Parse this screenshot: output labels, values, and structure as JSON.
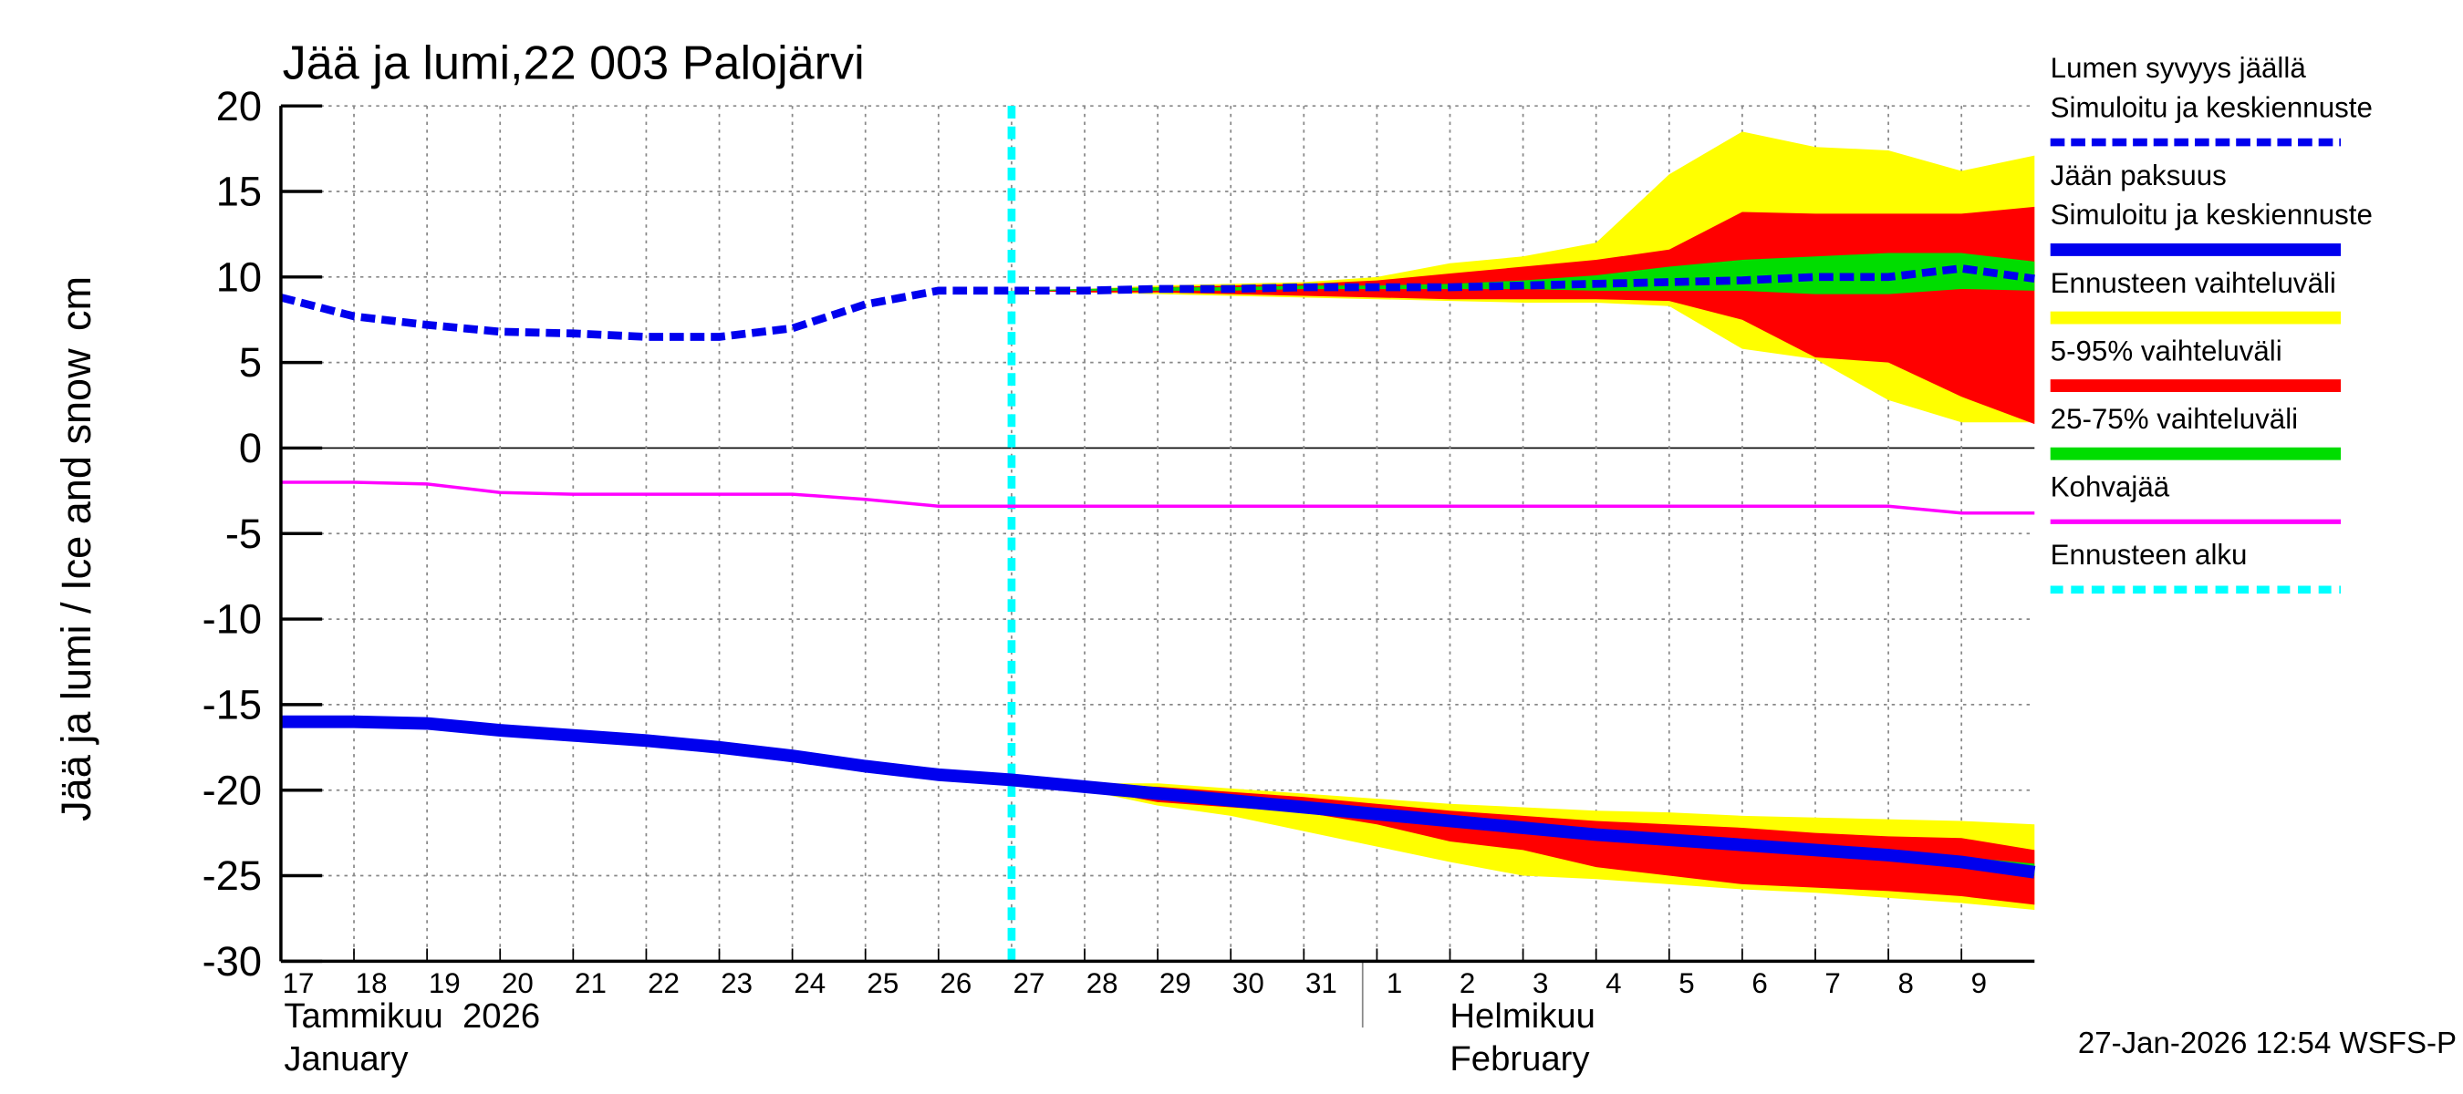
{
  "chart_data": {
    "type": "ice-forecast",
    "title": "Jää ja lumi,22 003 Palojärvi",
    "y_label": "Jää ja lumi / Ice and snow",
    "y_unit": "cm",
    "footer": "27-Jan-2026 12:54 WSFS-P",
    "months": [
      {
        "x": "2026-01-17",
        "labels": [
          "Tammikuu  2026",
          "January"
        ]
      },
      {
        "x": "2026-02-01",
        "labels": [
          "Helmikuu",
          "February"
        ]
      }
    ],
    "xlim": [
      "2026-01-17",
      "2026-02-10"
    ],
    "ylim": [
      -30,
      20
    ],
    "yticks": [
      -30,
      -25,
      -20,
      -15,
      -10,
      -5,
      0,
      5,
      10,
      15,
      20
    ],
    "xticks": [
      {
        "value": "2026-01-17",
        "label": "17"
      },
      {
        "value": "2026-01-18",
        "label": "18"
      },
      {
        "value": "2026-01-19",
        "label": "19"
      },
      {
        "value": "2026-01-20",
        "label": "20"
      },
      {
        "value": "2026-01-21",
        "label": "21"
      },
      {
        "value": "2026-01-22",
        "label": "22"
      },
      {
        "value": "2026-01-23",
        "label": "23"
      },
      {
        "value": "2026-01-24",
        "label": "24"
      },
      {
        "value": "2026-01-25",
        "label": "25"
      },
      {
        "value": "2026-01-26",
        "label": "26"
      },
      {
        "value": "2026-01-27",
        "label": "27"
      },
      {
        "value": "2026-01-28",
        "label": "28"
      },
      {
        "value": "2026-01-29",
        "label": "29"
      },
      {
        "value": "2026-01-30",
        "label": "30"
      },
      {
        "value": "2026-01-31",
        "label": "31"
      },
      {
        "value": "2026-02-01",
        "label": "1"
      },
      {
        "value": "2026-02-02",
        "label": "2"
      },
      {
        "value": "2026-02-03",
        "label": "3"
      },
      {
        "value": "2026-02-04",
        "label": "4"
      },
      {
        "value": "2026-02-05",
        "label": "5"
      },
      {
        "value": "2026-02-06",
        "label": "6"
      },
      {
        "value": "2026-02-07",
        "label": "7"
      },
      {
        "value": "2026-02-08",
        "label": "8"
      },
      {
        "value": "2026-02-09",
        "label": "9"
      }
    ],
    "grid": true,
    "x": [
      "2026-01-17",
      "2026-01-18",
      "2026-01-19",
      "2026-01-20",
      "2026-01-21",
      "2026-01-22",
      "2026-01-23",
      "2026-01-24",
      "2026-01-25",
      "2026-01-26",
      "2026-01-27",
      "2026-01-28",
      "2026-01-29",
      "2026-01-30",
      "2026-01-31",
      "2026-02-01",
      "2026-02-02",
      "2026-02-03",
      "2026-02-04",
      "2026-02-05",
      "2026-02-06",
      "2026-02-07",
      "2026-02-08",
      "2026-02-09",
      "2026-02-10"
    ],
    "bands": [
      {
        "name": "Ennusteen vaihteluväli",
        "color": "#ffff00",
        "snow": {
          "low": [
            null,
            null,
            null,
            null,
            null,
            null,
            null,
            null,
            null,
            null,
            9.2,
            9.1,
            9.0,
            8.9,
            8.8,
            8.7,
            8.6,
            8.5,
            8.5,
            8.3,
            5.8,
            5.2,
            2.8,
            1.5,
            1.5
          ],
          "high": [
            null,
            null,
            null,
            null,
            null,
            null,
            null,
            null,
            null,
            null,
            9.2,
            9.3,
            9.5,
            9.6,
            9.7,
            10.0,
            10.8,
            11.2,
            12.0,
            16.0,
            18.5,
            17.6,
            17.4,
            16.2,
            17.1
          ]
        },
        "ice": {
          "low": [
            null,
            null,
            null,
            null,
            null,
            null,
            null,
            null,
            null,
            null,
            -19.4,
            -20.0,
            -20.9,
            -21.5,
            -22.4,
            -23.3,
            -24.2,
            -25.0,
            -25.2,
            -25.5,
            -25.8,
            -26.0,
            -26.3,
            -26.6,
            -27.0
          ],
          "high": [
            null,
            null,
            null,
            null,
            null,
            null,
            null,
            null,
            null,
            null,
            -19.4,
            -19.6,
            -19.6,
            -19.9,
            -20.2,
            -20.5,
            -20.8,
            -21.0,
            -21.2,
            -21.3,
            -21.5,
            -21.6,
            -21.7,
            -21.8,
            -22.0
          ]
        }
      },
      {
        "name": "5-95% vaihteluväli",
        "color": "#ff0000",
        "snow": {
          "low": [
            null,
            null,
            null,
            null,
            null,
            null,
            null,
            null,
            null,
            null,
            9.2,
            9.1,
            9.1,
            9.0,
            8.9,
            8.8,
            8.7,
            8.7,
            8.7,
            8.6,
            7.5,
            5.3,
            5.0,
            3.0,
            1.4
          ],
          "high": [
            null,
            null,
            null,
            null,
            null,
            null,
            null,
            null,
            null,
            null,
            9.2,
            9.3,
            9.4,
            9.5,
            9.6,
            9.8,
            10.2,
            10.6,
            11.0,
            11.6,
            13.8,
            13.7,
            13.7,
            13.7,
            14.1
          ]
        },
        "ice": {
          "low": [
            null,
            null,
            null,
            null,
            null,
            null,
            null,
            null,
            null,
            null,
            -19.4,
            -19.9,
            -20.7,
            -21.0,
            -21.3,
            -22.0,
            -23.0,
            -23.5,
            -24.5,
            -25.0,
            -25.5,
            -25.7,
            -25.9,
            -26.2,
            -26.7
          ],
          "high": [
            null,
            null,
            null,
            null,
            null,
            null,
            null,
            null,
            null,
            null,
            -19.4,
            -19.7,
            -19.8,
            -20.1,
            -20.4,
            -20.8,
            -21.2,
            -21.5,
            -21.8,
            -22.0,
            -22.2,
            -22.5,
            -22.7,
            -22.8,
            -23.5
          ]
        }
      },
      {
        "name": "25-75% vaihteluväli",
        "color": "#00dd00",
        "snow": {
          "low": [
            null,
            null,
            null,
            null,
            null,
            null,
            null,
            null,
            null,
            null,
            9.2,
            9.2,
            9.2,
            9.2,
            9.3,
            9.3,
            9.3,
            9.3,
            9.2,
            9.2,
            9.2,
            9.0,
            9.0,
            9.3,
            9.2
          ],
          "high": [
            null,
            null,
            null,
            null,
            null,
            null,
            null,
            null,
            null,
            null,
            9.2,
            9.3,
            9.4,
            9.4,
            9.5,
            9.5,
            9.6,
            9.8,
            10.1,
            10.6,
            11.0,
            11.2,
            11.4,
            11.4,
            10.9
          ]
        },
        "ice": {
          "low": [
            null,
            null,
            null,
            null,
            null,
            null,
            null,
            null,
            null,
            null,
            -19.4,
            -19.9,
            -20.3,
            -20.7,
            -21.1,
            -21.5,
            -21.9,
            -22.4,
            -22.8,
            -23.1,
            -23.4,
            -23.7,
            -24.0,
            -24.5,
            -25.0
          ],
          "high": [
            null,
            null,
            null,
            null,
            null,
            null,
            null,
            null,
            null,
            null,
            -19.4,
            -19.8,
            -20.1,
            -20.5,
            -20.9,
            -21.3,
            -21.7,
            -22.0,
            -22.4,
            -22.7,
            -23.0,
            -23.3,
            -23.6,
            -23.9,
            -24.3
          ]
        }
      }
    ],
    "series": [
      {
        "name": "Lumen syvyys jäällä",
        "description": "Simuloitu ja keskiennuste",
        "color": "#0000ee",
        "dashed": true,
        "values": [
          8.8,
          7.7,
          7.2,
          6.8,
          6.7,
          6.5,
          6.5,
          7.0,
          8.4,
          9.2,
          9.2,
          9.2,
          9.3,
          9.3,
          9.4,
          9.4,
          9.4,
          9.5,
          9.6,
          9.7,
          9.8,
          10.0,
          10.0,
          10.5,
          9.9
        ]
      },
      {
        "name": "Jään paksuus",
        "description": "Simuloitu ja keskiennuste",
        "color": "#0000ee",
        "dashed": false,
        "values": [
          -16.0,
          -16.0,
          -16.1,
          -16.5,
          -16.8,
          -17.1,
          -17.5,
          -18.0,
          -18.6,
          -19.1,
          -19.4,
          -19.8,
          -20.2,
          -20.6,
          -21.0,
          -21.4,
          -21.8,
          -22.2,
          -22.6,
          -22.9,
          -23.2,
          -23.5,
          -23.8,
          -24.2,
          -24.8
        ]
      },
      {
        "name": "Kohvajää",
        "color": "#ff00ff",
        "dashed": false,
        "values": [
          -2.0,
          -2.0,
          -2.1,
          -2.6,
          -2.7,
          -2.7,
          -2.7,
          -2.7,
          -3.0,
          -3.4,
          -3.4,
          -3.4,
          -3.4,
          -3.4,
          -3.4,
          -3.4,
          -3.4,
          -3.4,
          -3.4,
          -3.4,
          -3.4,
          -3.4,
          -3.4,
          -3.8,
          -3.8
        ]
      }
    ],
    "forecast_start": {
      "name": "Ennusteen alku",
      "x": "2026-01-27",
      "color": "#00ffff"
    }
  }
}
